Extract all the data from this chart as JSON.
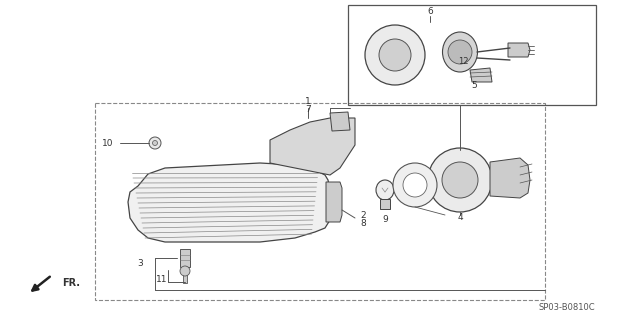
{
  "bg_color": "#ffffff",
  "diagram_code": "SP03-B0810C",
  "line_color": "#555555",
  "text_color": "#333333",
  "fill_light": "#e8e8e8",
  "fill_mid": "#cccccc",
  "fill_dark": "#aaaaaa"
}
